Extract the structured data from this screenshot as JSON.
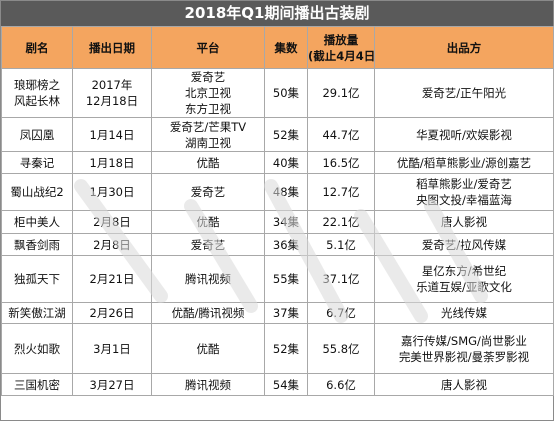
{
  "title": "2018年Q1期间播出古装剧",
  "headers": {
    "name": "剧名",
    "date": "播出日期",
    "platform": "平台",
    "episodes": "集数",
    "views_line1": "播放量",
    "views_line2": "(截止4月4日)",
    "producer": "出品方"
  },
  "rows": [
    {
      "name": [
        "琅琊榜之",
        "风起长林"
      ],
      "date": [
        "2017年",
        "12月18日"
      ],
      "platform": [
        "爱奇艺",
        "北京卫视",
        "东方卫视"
      ],
      "episodes": "50集",
      "views": "29.1亿",
      "producer": [
        "爱奇艺/正午阳光"
      ]
    },
    {
      "name": [
        "凤囚凰"
      ],
      "date": [
        "1月14日"
      ],
      "platform": [
        "爱奇艺/芒果TV",
        "湖南卫视"
      ],
      "episodes": "52集",
      "views": "44.7亿",
      "producer": [
        "华夏视听/欢娱影视"
      ]
    },
    {
      "name": [
        "寻秦记"
      ],
      "date": [
        "1月18日"
      ],
      "platform": [
        "优酷"
      ],
      "episodes": "40集",
      "views": "16.5亿",
      "producer": [
        "优酷/稻草熊影业/源创嘉艺"
      ]
    },
    {
      "name": [
        "蜀山战纪2"
      ],
      "date": [
        "1月30日"
      ],
      "platform": [
        "爱奇艺"
      ],
      "episodes": "48集",
      "views": "12.7亿",
      "producer": [
        "稻草熊影业/爱奇艺",
        "央图文投/幸福蓝海"
      ]
    },
    {
      "name": [
        "柜中美人"
      ],
      "date": [
        "2月8日"
      ],
      "platform": [
        "优酷"
      ],
      "episodes": "34集",
      "views": "22.1亿",
      "producer": [
        "唐人影视"
      ]
    },
    {
      "name": [
        "飘香剑雨"
      ],
      "date": [
        "2月8日"
      ],
      "platform": [
        "爱奇艺"
      ],
      "episodes": "36集",
      "views": "5.1亿",
      "producer": [
        "爱奇艺/拉风传媒"
      ]
    },
    {
      "name": [
        "独孤天下"
      ],
      "date": [
        "2月21日"
      ],
      "platform": [
        "腾讯视频"
      ],
      "episodes": "55集",
      "views": "37.1亿",
      "producer": [
        "星亿东方/希世纪",
        "乐道互娱/亚歌文化"
      ]
    },
    {
      "name": [
        "新笑傲江湖"
      ],
      "date": [
        "2月26日"
      ],
      "platform": [
        "优酷/腾讯视频"
      ],
      "episodes": "37集",
      "views": "6.7亿",
      "producer": [
        "光线传媒"
      ]
    },
    {
      "name": [
        "烈火如歌"
      ],
      "date": [
        "3月1日"
      ],
      "platform": [
        "优酷"
      ],
      "episodes": "52集",
      "views": "55.8亿",
      "producer": [
        "嘉行传媒/SMG/尚世影业",
        "完美世界影视/曼荼罗影视"
      ]
    },
    {
      "name": [
        "三国机密"
      ],
      "date": [
        "3月27日"
      ],
      "platform": [
        "腾讯视频"
      ],
      "episodes": "54集",
      "views": "6.6亿",
      "producer": [
        "唐人影视"
      ]
    }
  ],
  "colors": {
    "title_bg": "#5a5a5a",
    "header_bg": "#f4a55f",
    "border": "#a8a8a8"
  }
}
